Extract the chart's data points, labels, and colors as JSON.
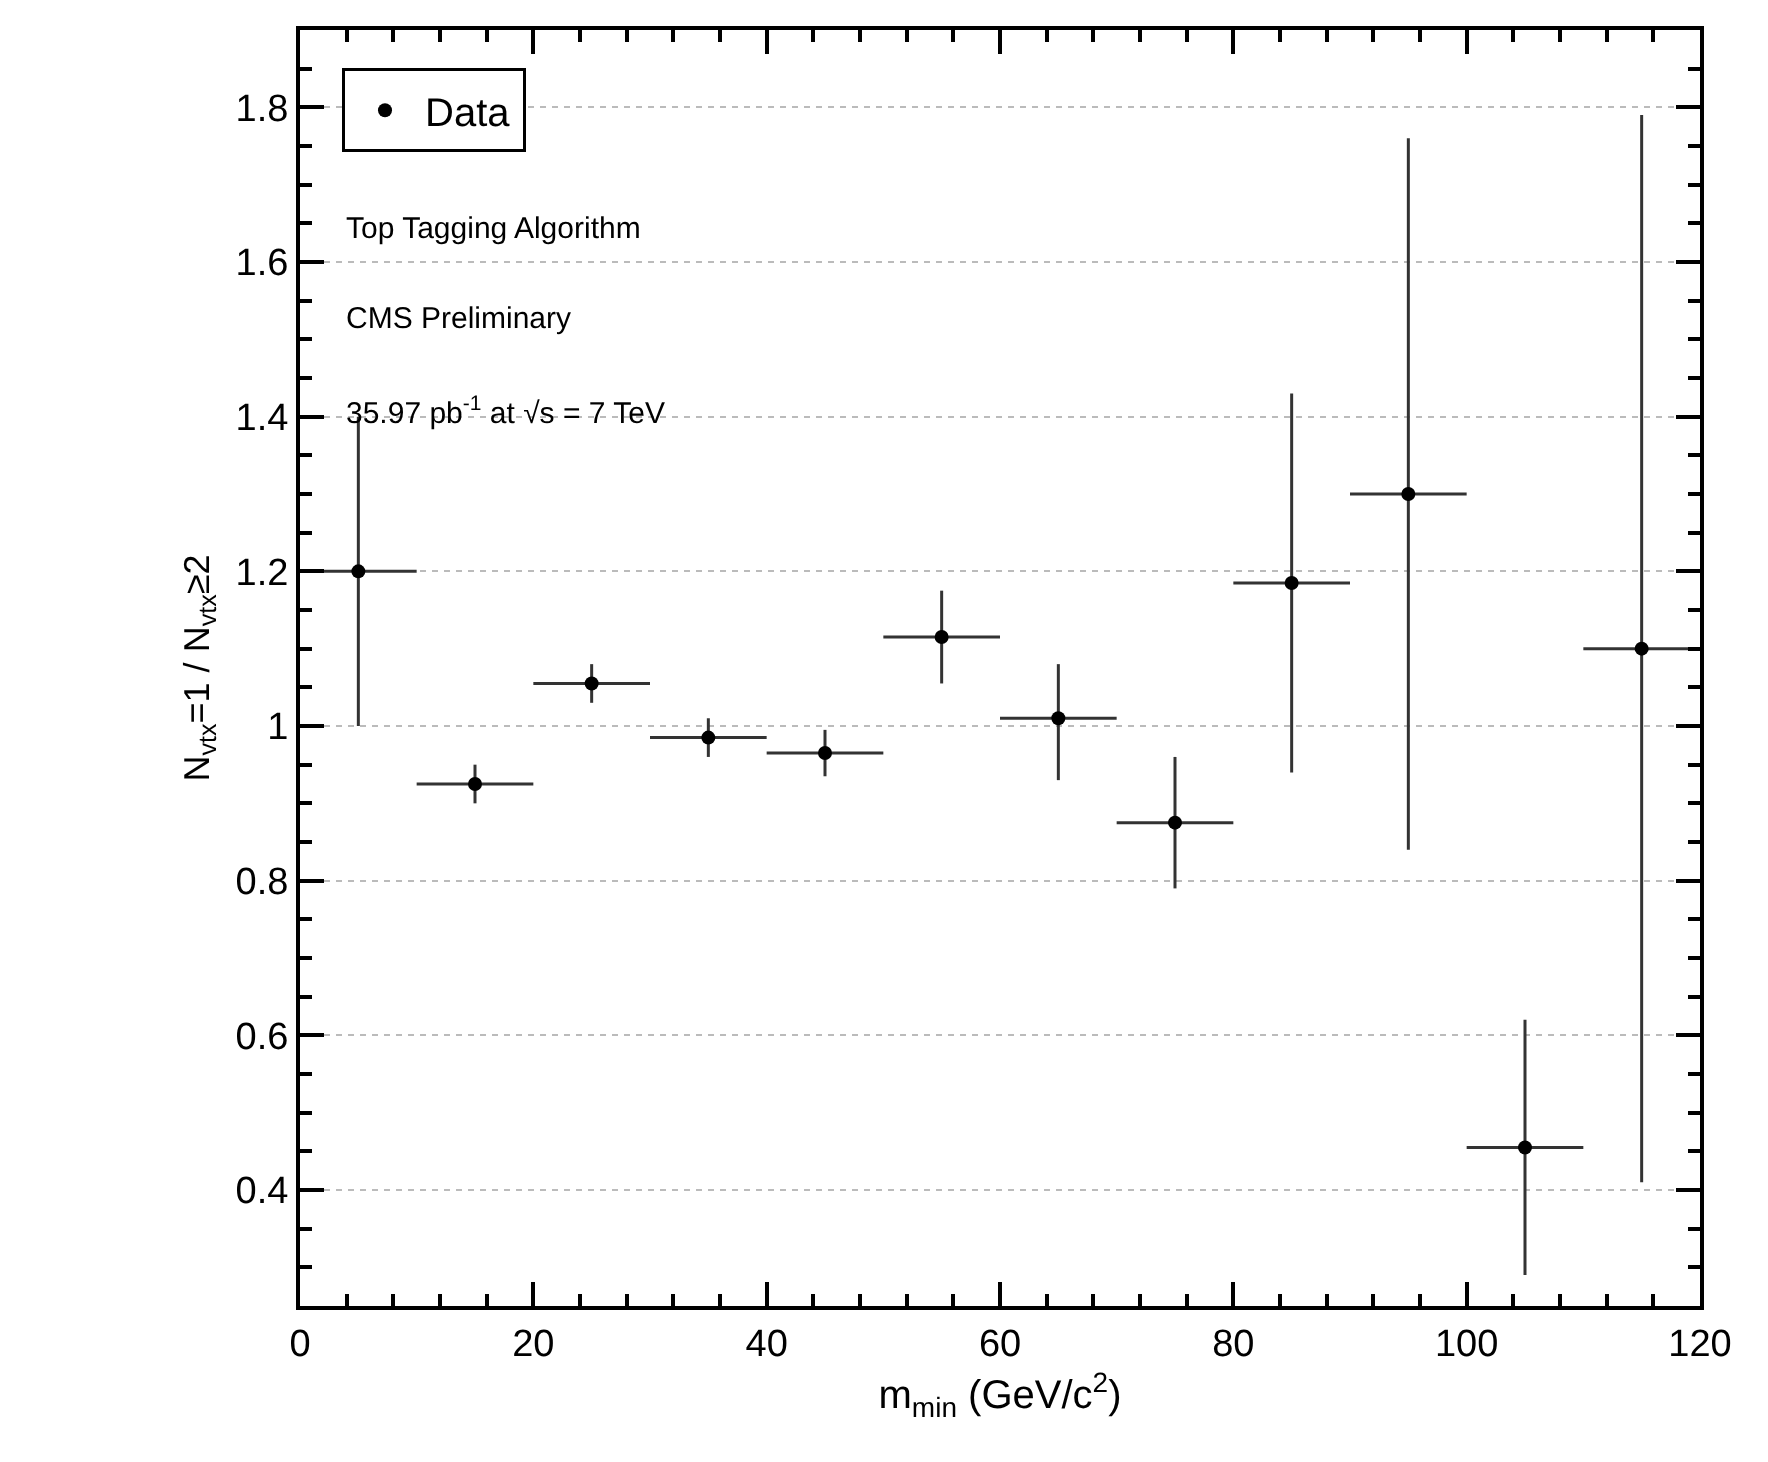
{
  "chart_data": {
    "type": "scatter",
    "xlabel": "m$_{min}$ (GeV/c$^{2}$)",
    "ylabel": "N$_{vtx}$=1 / N$_{vtx}$≥2",
    "annotations": [
      "Top Tagging Algorithm",
      "CMS Preliminary",
      "35.97 pb$^{-1}$ at √s = 7 TeV"
    ],
    "x": [
      5,
      15,
      25,
      35,
      45,
      55,
      65,
      75,
      85,
      95,
      105,
      115
    ],
    "series": [
      {
        "name": "Data",
        "color": "#000000",
        "values": [
          1.2,
          0.925,
          1.055,
          0.985,
          0.965,
          1.115,
          1.01,
          0.875,
          1.185,
          1.3,
          0.455,
          1.1
        ],
        "errors": [
          [
            1.0,
            1.4
          ],
          0.025,
          0.025,
          0.025,
          0.03,
          0.06,
          [
            0.93,
            1.08
          ],
          [
            0.79,
            0.96
          ],
          [
            0.94,
            1.43
          ],
          [
            0.84,
            1.76
          ],
          [
            0.29,
            0.62
          ],
          [
            0.41,
            1.79
          ]
        ],
        "xerrors": [
          5,
          5,
          5,
          5,
          5,
          5,
          5,
          5,
          5,
          5,
          5,
          5
        ]
      }
    ],
    "xlim": [
      0,
      120
    ],
    "xticks": [
      0,
      20,
      40,
      60,
      80,
      100,
      120
    ],
    "ylim": [
      0.25,
      1.9
    ],
    "yticks": [
      0.4,
      0.6,
      0.8,
      1,
      1.2,
      1.4,
      1.6,
      1.8
    ],
    "grid": "y",
    "legend": "top left",
    "marker": "circle"
  }
}
